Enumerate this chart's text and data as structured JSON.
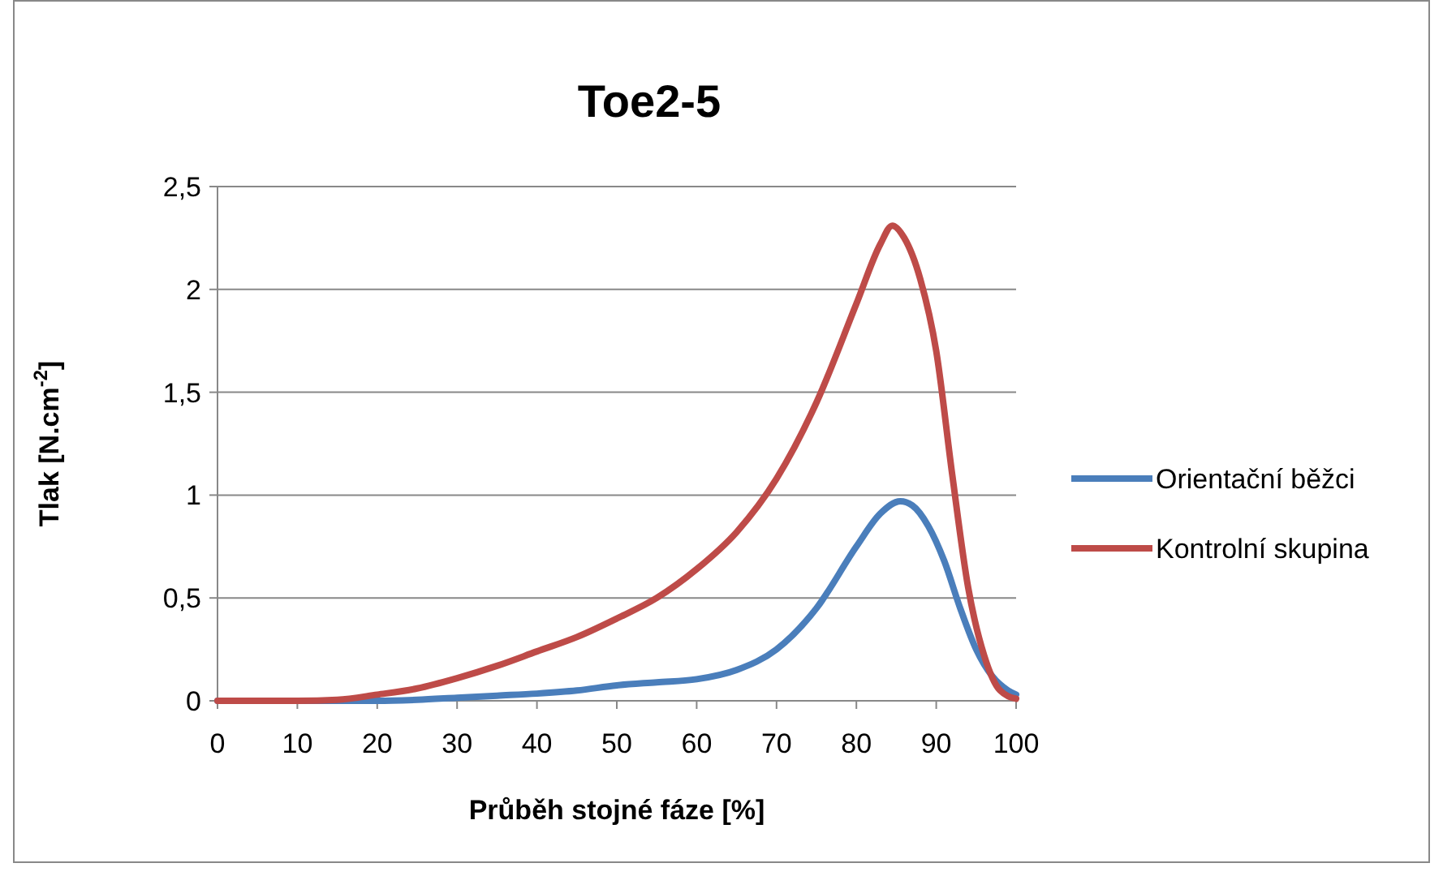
{
  "chart_data": {
    "type": "line",
    "title": "Toe2-5",
    "xlabel": "Průběh stojné fáze [%]",
    "ylabel": "Tlak [N.cm$^{-2}$]",
    "xlim": [
      0,
      100
    ],
    "xticks": [
      0,
      10,
      20,
      30,
      40,
      50,
      60,
      70,
      80,
      90,
      100
    ],
    "ylim": [
      0,
      2.5
    ],
    "yticks": [
      {
        "value": 0,
        "label": "0"
      },
      {
        "value": 0.5,
        "label": "0,5"
      },
      {
        "value": 1,
        "label": "1"
      },
      {
        "value": 1.5,
        "label": "1,5"
      },
      {
        "value": 2,
        "label": "2"
      },
      {
        "value": 2.5,
        "label": "2,5"
      }
    ],
    "grid": "y",
    "legend": "right",
    "marker": "none",
    "line_style": "solid",
    "series": [
      {
        "name": "Orientační běžci",
        "color": "#4a7ebb",
        "x": [
          0,
          10,
          20,
          25,
          30,
          35,
          40,
          45,
          50,
          55,
          60,
          65,
          70,
          75,
          80,
          83,
          85.5,
          87,
          89,
          91,
          93,
          95,
          97,
          99,
          100
        ],
        "values": [
          0,
          0,
          0,
          0.005,
          0.015,
          0.025,
          0.035,
          0.05,
          0.075,
          0.09,
          0.105,
          0.15,
          0.25,
          0.45,
          0.75,
          0.91,
          0.97,
          0.95,
          0.85,
          0.68,
          0.45,
          0.25,
          0.12,
          0.05,
          0.03
        ]
      },
      {
        "name": "Kontrolní skupina",
        "color": "#be4b48",
        "x": [
          0,
          10,
          15,
          20,
          25,
          30,
          35,
          40,
          45,
          50,
          55,
          60,
          65,
          70,
          75,
          80,
          83,
          84.5,
          86,
          88,
          90,
          92,
          94,
          96,
          98,
          100
        ],
        "values": [
          0,
          0,
          0.005,
          0.03,
          0.06,
          0.11,
          0.17,
          0.24,
          0.31,
          0.4,
          0.5,
          0.64,
          0.82,
          1.08,
          1.45,
          1.93,
          2.22,
          2.31,
          2.25,
          2.05,
          1.7,
          1.1,
          0.55,
          0.22,
          0.05,
          0.01
        ]
      }
    ]
  }
}
